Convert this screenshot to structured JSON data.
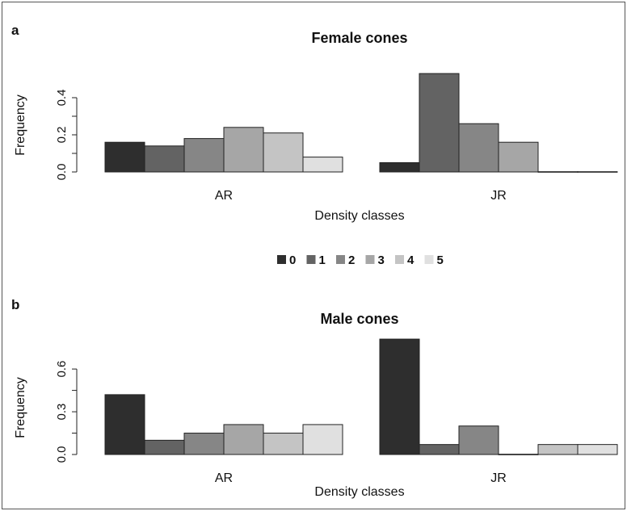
{
  "legend": {
    "entries": [
      "0",
      "1",
      "2",
      "3",
      "4",
      "5"
    ],
    "colors": [
      "#2e2e2e",
      "#636363",
      "#868686",
      "#a6a6a6",
      "#c4c4c4",
      "#e0e0e0"
    ]
  },
  "chart_data": [
    {
      "type": "bar",
      "panel": "a",
      "title": "Female cones",
      "xlabel": "Density classes",
      "ylabel": "Frequency",
      "categories": [
        "AR",
        "JR"
      ],
      "ylim": [
        0,
        0.5
      ],
      "yticks": [
        "0.0",
        "0.2",
        "0.4"
      ],
      "ytick_values": [
        0.0,
        0.2,
        0.4
      ],
      "grid": false,
      "series": [
        {
          "name": "0",
          "values": [
            0.16,
            0.05
          ]
        },
        {
          "name": "1",
          "values": [
            0.14,
            0.53
          ]
        },
        {
          "name": "2",
          "values": [
            0.18,
            0.26
          ]
        },
        {
          "name": "3",
          "values": [
            0.24,
            0.16
          ]
        },
        {
          "name": "4",
          "values": [
            0.21,
            0.0
          ]
        },
        {
          "name": "5",
          "values": [
            0.08,
            0.0
          ]
        }
      ]
    },
    {
      "type": "bar",
      "panel": "b",
      "title": "Male cones",
      "xlabel": "Density classes",
      "ylabel": "Frequency",
      "categories": [
        "AR",
        "JR"
      ],
      "ylim": [
        0,
        0.68
      ],
      "yticks": [
        "0.0",
        "0.3",
        "0.6"
      ],
      "ytick_values": [
        0.0,
        0.3,
        0.6
      ],
      "grid": false,
      "series": [
        {
          "name": "0",
          "values": [
            0.42,
            0.81
          ]
        },
        {
          "name": "1",
          "values": [
            0.1,
            0.07
          ]
        },
        {
          "name": "2",
          "values": [
            0.15,
            0.2
          ]
        },
        {
          "name": "3",
          "values": [
            0.21,
            0.0
          ]
        },
        {
          "name": "4",
          "values": [
            0.15,
            0.07
          ]
        },
        {
          "name": "5",
          "values": [
            0.21,
            0.07
          ]
        }
      ]
    }
  ]
}
